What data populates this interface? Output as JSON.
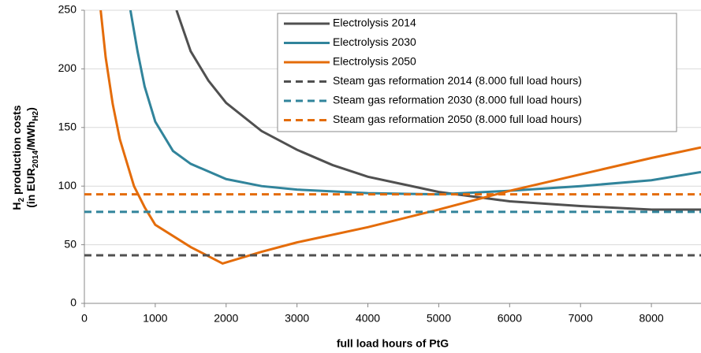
{
  "chart_data": {
    "type": "line",
    "xlabel": "full load hours of PtG",
    "ylabel_line1": [
      "H",
      "2",
      " production costs"
    ],
    "ylabel_line2": [
      "(in EUR",
      "2014",
      "/MWh",
      "H2",
      ")"
    ],
    "xlim": [
      0,
      8700
    ],
    "xticks": [
      0,
      1000,
      2000,
      3000,
      4000,
      5000,
      6000,
      7000,
      8000
    ],
    "ylim": [
      0,
      250
    ],
    "yticks": [
      0,
      50,
      100,
      150,
      200,
      250
    ],
    "grid": true,
    "legend": "top-right",
    "series": [
      {
        "name": "Electrolysis 2014",
        "color": "#505050",
        "dashed": false,
        "x": [
          1300,
          1500,
          1750,
          2000,
          2500,
          3000,
          3500,
          4000,
          5000,
          6000,
          7000,
          8000,
          8700
        ],
        "values": [
          250,
          215,
          190,
          171,
          147,
          131,
          118,
          108,
          95,
          87,
          83,
          80,
          80
        ]
      },
      {
        "name": "Electrolysis 2030",
        "color": "#31849b",
        "dashed": false,
        "x": [
          650,
          750,
          850,
          1000,
          1250,
          1500,
          2000,
          2500,
          3000,
          4000,
          5000,
          6000,
          7000,
          8000,
          8700
        ],
        "values": [
          250,
          215,
          185,
          155,
          130,
          119,
          106,
          100,
          97,
          94,
          93,
          96,
          100,
          105,
          112
        ]
      },
      {
        "name": "Electrolysis 2050",
        "color": "#e46c0a",
        "dashed": false,
        "x": [
          230,
          300,
          400,
          500,
          700,
          850,
          1000,
          1500,
          1950,
          2500,
          3000,
          4000,
          5000,
          6000,
          7000,
          8000,
          8700
        ],
        "values": [
          250,
          210,
          170,
          140,
          100,
          82,
          67,
          48,
          34,
          44,
          52,
          65,
          80,
          96,
          110,
          124,
          133
        ]
      },
      {
        "name": "Steam gas reformation 2014 (8.000 full load hours)",
        "color": "#505050",
        "dashed": true,
        "x": [
          0,
          8700
        ],
        "values": [
          41,
          41
        ]
      },
      {
        "name": "Steam gas reformation 2030  (8.000 full load hours)",
        "color": "#31849b",
        "dashed": true,
        "x": [
          0,
          8700
        ],
        "values": [
          78,
          78
        ]
      },
      {
        "name": "Steam gas reformation 2050  (8.000 full load hours)",
        "color": "#e46c0a",
        "dashed": true,
        "x": [
          0,
          8700
        ],
        "values": [
          93,
          93
        ]
      }
    ]
  }
}
